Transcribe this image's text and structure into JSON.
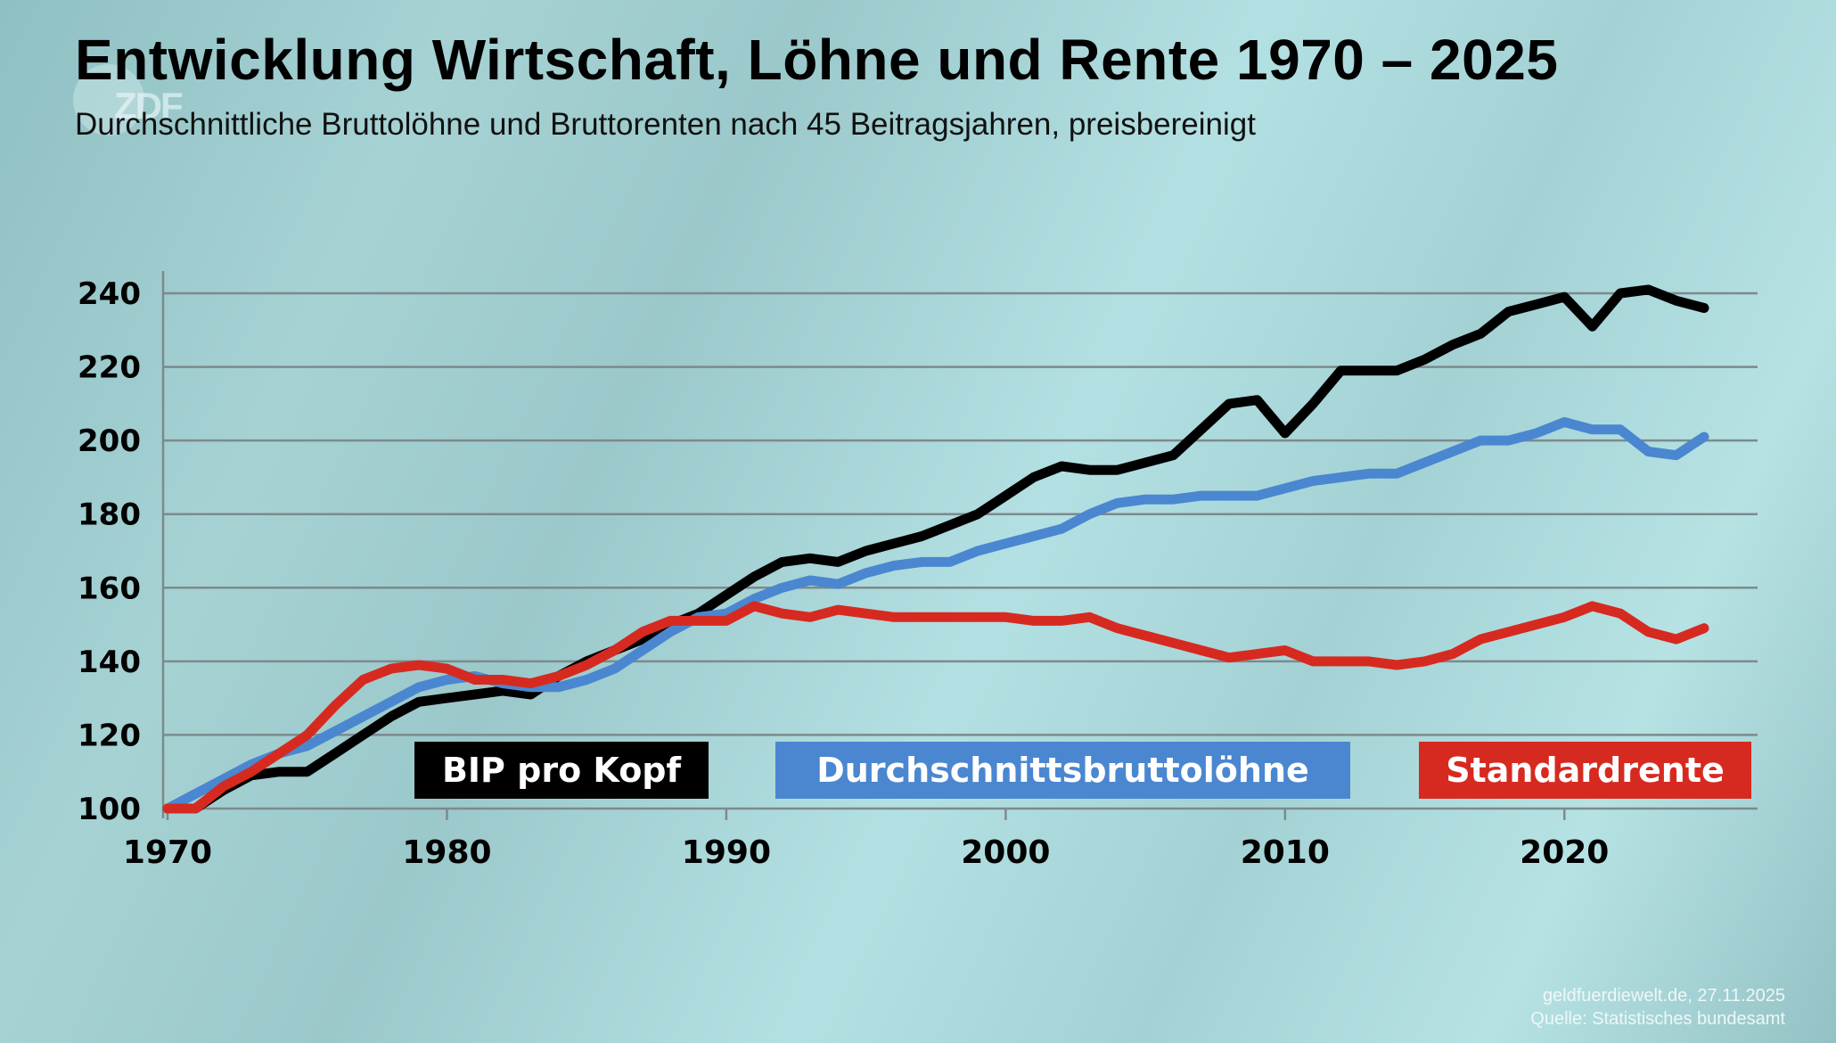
{
  "header": {
    "title": "Entwicklung Wirtschaft, Löhne und Rente 1970 – 2025",
    "subtitle": "Durchschnittliche Bruttolöhne und Bruttorenten nach 45 Beitragsjahren, preisbereinigt",
    "logo_text": "ZDF"
  },
  "footer": {
    "line1": "geldfuerdiewelt.de, 27.11.2025",
    "line2": "Quelle: Statistisches bundesamt"
  },
  "chart_data": {
    "type": "line",
    "title": "Entwicklung Wirtschaft, Löhne und Rente 1970 – 2025",
    "subtitle": "Durchschnittliche Bruttolöhne und Bruttorenten nach 45 Beitragsjahren, preisbereinigt",
    "xlabel": "",
    "ylabel": "",
    "xlim": [
      1970,
      2025
    ],
    "ylim": [
      100,
      240
    ],
    "x_ticks": [
      1970,
      1980,
      1990,
      2000,
      2010,
      2020
    ],
    "y_ticks": [
      100,
      120,
      140,
      160,
      180,
      200,
      220,
      240
    ],
    "grid": "horizontal",
    "legend_placement": "bottom (inline labels inside plot)",
    "x": [
      1970,
      1971,
      1972,
      1973,
      1974,
      1975,
      1976,
      1977,
      1978,
      1979,
      1980,
      1981,
      1982,
      1983,
      1984,
      1985,
      1986,
      1987,
      1988,
      1989,
      1990,
      1991,
      1992,
      1993,
      1994,
      1995,
      1996,
      1997,
      1998,
      1999,
      2000,
      2001,
      2002,
      2003,
      2004,
      2005,
      2006,
      2007,
      2008,
      2009,
      2010,
      2011,
      2012,
      2013,
      2014,
      2015,
      2016,
      2017,
      2018,
      2019,
      2020,
      2021,
      2022,
      2023,
      2024,
      2025
    ],
    "series": [
      {
        "name": "BIP pro Kopf",
        "color": "#000000",
        "values": [
          100,
          100,
          105,
          109,
          110,
          110,
          115,
          120,
          125,
          129,
          130,
          131,
          132,
          131,
          136,
          140,
          143,
          146,
          150,
          153,
          158,
          163,
          167,
          168,
          167,
          170,
          172,
          174,
          177,
          180,
          185,
          190,
          193,
          192,
          192,
          194,
          196,
          203,
          210,
          211,
          202,
          210,
          219,
          219,
          219,
          222,
          226,
          229,
          235,
          237,
          239,
          231,
          240,
          241,
          238,
          236
        ]
      },
      {
        "name": "Durchschnittsbruttolöhne",
        "color": "#4a87d0",
        "values": [
          100,
          104,
          108,
          112,
          115,
          117,
          121,
          125,
          129,
          133,
          135,
          136,
          134,
          133,
          133,
          135,
          138,
          143,
          148,
          152,
          153,
          157,
          160,
          162,
          161,
          164,
          166,
          167,
          167,
          170,
          172,
          174,
          176,
          180,
          183,
          184,
          184,
          185,
          185,
          185,
          187,
          189,
          190,
          191,
          191,
          194,
          197,
          200,
          200,
          202,
          205,
          203,
          203,
          197,
          196,
          201
        ]
      },
      {
        "name": "Standardrente",
        "color": "#d62a20",
        "values": [
          100,
          100,
          106,
          110,
          115,
          120,
          128,
          135,
          138,
          139,
          138,
          135,
          135,
          134,
          136,
          139,
          143,
          148,
          151,
          151,
          151,
          155,
          153,
          152,
          154,
          153,
          152,
          152,
          152,
          152,
          152,
          151,
          151,
          152,
          149,
          147,
          145,
          143,
          141,
          142,
          143,
          140,
          140,
          140,
          139,
          140,
          142,
          146,
          148,
          150,
          152,
          155,
          153,
          148,
          146,
          149
        ]
      }
    ]
  }
}
